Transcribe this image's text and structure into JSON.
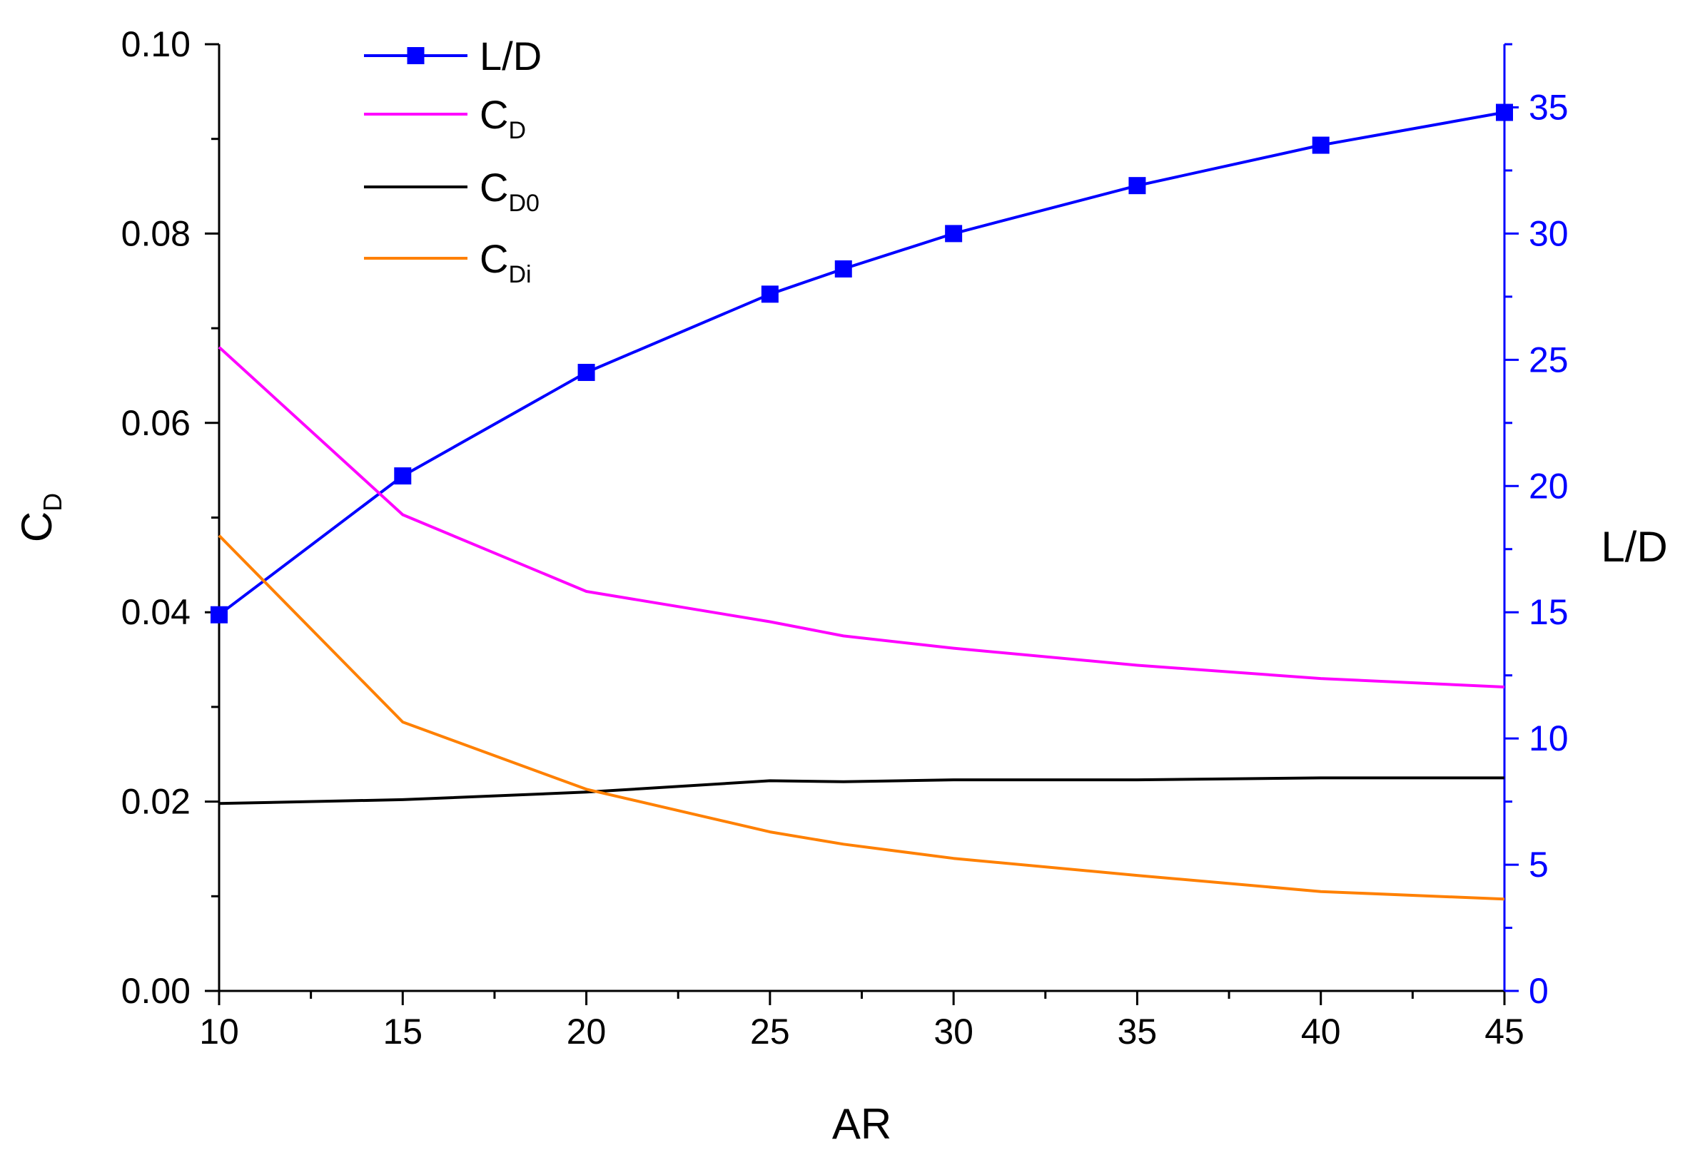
{
  "chart_data": {
    "type": "line",
    "x": [
      10,
      15,
      20,
      25,
      27,
      30,
      35,
      40,
      45
    ],
    "xlabel": "AR",
    "xlim": [
      10,
      45
    ],
    "xticks": [
      "10",
      "15",
      "20",
      "25",
      "30",
      "35",
      "40",
      "45"
    ],
    "ylabel_left": {
      "main": "C",
      "sub": "D"
    },
    "ylim_left": [
      0,
      0.1
    ],
    "yticks_left": [
      "0.00",
      "0.02",
      "0.04",
      "0.06",
      "0.08",
      "0.10"
    ],
    "ylabel_right": "L/D",
    "ylim_right": [
      0,
      37.5
    ],
    "yticks_right": [
      "0",
      "5",
      "10",
      "15",
      "20",
      "25",
      "30",
      "35"
    ],
    "right_axis_color": "#0000ff",
    "series": [
      {
        "name": "L/D",
        "label_main": "L/D",
        "label_sub": "",
        "axis": "right",
        "color": "#0000ff",
        "marker": "square",
        "values": [
          14.9,
          20.4,
          24.5,
          27.6,
          28.6,
          30.0,
          31.9,
          33.5,
          34.8
        ]
      },
      {
        "name": "C_D",
        "label_main": "C",
        "label_sub": "D",
        "axis": "left",
        "color": "#ff00ff",
        "marker": "none",
        "values": [
          0.068,
          0.0503,
          0.0422,
          0.039,
          0.0375,
          0.0362,
          0.0344,
          0.033,
          0.0321
        ]
      },
      {
        "name": "C_D0",
        "label_main": "C",
        "label_sub": "D0",
        "axis": "left",
        "color": "#000000",
        "marker": "none",
        "values": [
          0.0198,
          0.0202,
          0.021,
          0.0222,
          0.0221,
          0.0223,
          0.0223,
          0.0225,
          0.0225
        ]
      },
      {
        "name": "C_Di",
        "label_main": "C",
        "label_sub": "Di",
        "axis": "left",
        "color": "#ff8000",
        "marker": "none",
        "values": [
          0.0481,
          0.0284,
          0.0213,
          0.0168,
          0.0155,
          0.014,
          0.0122,
          0.0105,
          0.0097
        ]
      }
    ],
    "legend_position": "top-left"
  }
}
